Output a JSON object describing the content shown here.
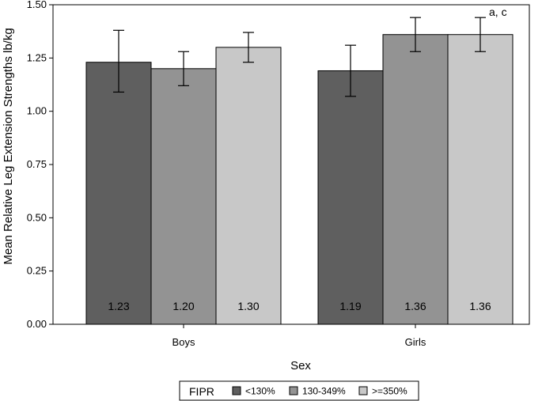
{
  "chart_data": {
    "type": "bar",
    "title": "",
    "xlabel": "Sex",
    "ylabel": "Mean Relative Leg Extension Strengths lb/kg",
    "categories": [
      "Boys",
      "Girls"
    ],
    "series": [
      {
        "name": "<130%",
        "color": "#5f5f5f",
        "values": [
          1.23,
          1.19
        ],
        "error_low": [
          1.09,
          1.07
        ],
        "error_high": [
          1.38,
          1.31
        ],
        "labels": [
          "1.23",
          "1.19"
        ]
      },
      {
        "name": "130-349%",
        "color": "#939393",
        "values": [
          1.2,
          1.36
        ],
        "error_low": [
          1.12,
          1.28
        ],
        "error_high": [
          1.28,
          1.44
        ],
        "labels": [
          "1.20",
          "1.36"
        ]
      },
      {
        "name": ">=350%",
        "color": "#c8c8c8",
        "values": [
          1.3,
          1.36
        ],
        "error_low": [
          1.23,
          1.28
        ],
        "error_high": [
          1.37,
          1.44
        ],
        "labels": [
          "1.30",
          "1.36"
        ]
      }
    ],
    "yticks": [
      "0.00",
      "0.25",
      "0.50",
      "0.75",
      "1.00",
      "1.25",
      "1.50"
    ],
    "ylim": [
      0,
      1.5
    ],
    "annotations": [
      {
        "series": 2,
        "category": 1,
        "text": "a, c"
      }
    ],
    "legend": {
      "title": "FIPR",
      "placement": "bottom"
    },
    "grid": false
  }
}
